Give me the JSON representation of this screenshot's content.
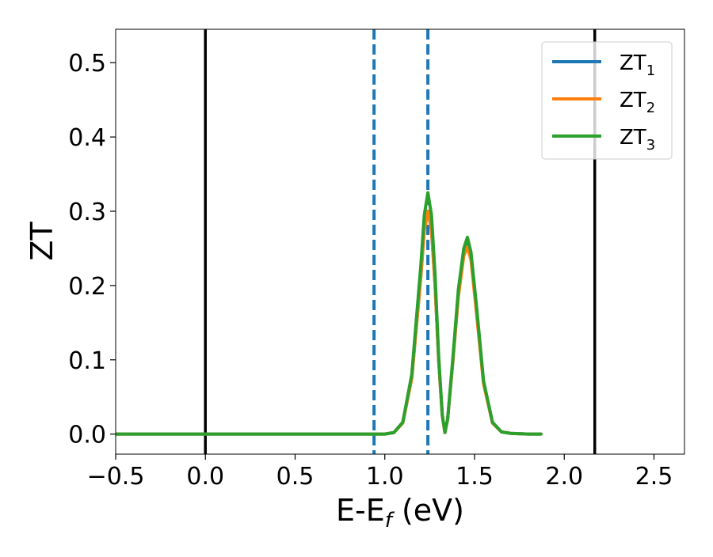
{
  "chart_data": {
    "type": "line",
    "title": "",
    "xlabel_main": "E-E",
    "xlabel_sub": "f",
    "xlabel_tail": " (eV)",
    "ylabel": "ZT",
    "xlim": [
      -0.5,
      2.67
    ],
    "ylim": [
      -0.027,
      0.545
    ],
    "xticks": [
      -0.5,
      0.0,
      0.5,
      1.0,
      1.5,
      2.0,
      2.5
    ],
    "xtick_labels": [
      "−0.5",
      "0.0",
      "0.5",
      "1.0",
      "1.5",
      "2.0",
      "2.5"
    ],
    "yticks": [
      0.0,
      0.1,
      0.2,
      0.3,
      0.4,
      0.5
    ],
    "ytick_labels": [
      "0.0",
      "0.1",
      "0.2",
      "0.3",
      "0.4",
      "0.5"
    ],
    "grid": false,
    "legend_position": "top-right",
    "vlines": [
      {
        "x": 0.0,
        "style": "solid",
        "color": "#000000"
      },
      {
        "x": 2.17,
        "style": "solid",
        "color": "#000000"
      },
      {
        "x": 0.94,
        "style": "dashed",
        "color": "#1f77b4"
      },
      {
        "x": 1.24,
        "style": "dashed",
        "color": "#1f77b4"
      }
    ],
    "series": [
      {
        "name_main": "ZT",
        "name_sub": "1",
        "color": "#1f77b4",
        "x": [
          -0.5,
          0.9,
          1.0,
          1.05,
          1.1,
          1.15,
          1.2,
          1.22,
          1.24,
          1.26,
          1.28,
          1.3,
          1.32,
          1.335,
          1.35,
          1.38,
          1.41,
          1.44,
          1.46,
          1.48,
          1.51,
          1.55,
          1.6,
          1.65,
          1.7,
          1.8,
          1.87
        ],
        "y": [
          0.0,
          0.0,
          0.0,
          0.002,
          0.015,
          0.075,
          0.21,
          0.275,
          0.3,
          0.275,
          0.2,
          0.1,
          0.025,
          0.002,
          0.02,
          0.1,
          0.19,
          0.245,
          0.258,
          0.24,
          0.17,
          0.07,
          0.015,
          0.003,
          0.001,
          0.0,
          0.0
        ]
      },
      {
        "name_main": "ZT",
        "name_sub": "2",
        "color": "#ff7f0e",
        "x": [
          -0.5,
          0.9,
          1.0,
          1.05,
          1.1,
          1.15,
          1.2,
          1.22,
          1.24,
          1.26,
          1.28,
          1.3,
          1.32,
          1.335,
          1.35,
          1.38,
          1.41,
          1.44,
          1.46,
          1.48,
          1.51,
          1.55,
          1.6,
          1.65,
          1.7,
          1.8,
          1.87
        ],
        "y": [
          0.0,
          0.0,
          0.0,
          0.002,
          0.015,
          0.075,
          0.21,
          0.275,
          0.3,
          0.275,
          0.2,
          0.1,
          0.025,
          0.002,
          0.02,
          0.1,
          0.185,
          0.24,
          0.252,
          0.235,
          0.165,
          0.068,
          0.015,
          0.003,
          0.001,
          0.0,
          0.0
        ]
      },
      {
        "name_main": "ZT",
        "name_sub": "3",
        "color": "#2ca02c",
        "x": [
          -0.5,
          0.9,
          1.0,
          1.05,
          1.1,
          1.15,
          1.2,
          1.22,
          1.24,
          1.26,
          1.28,
          1.3,
          1.32,
          1.335,
          1.35,
          1.38,
          1.41,
          1.44,
          1.46,
          1.48,
          1.51,
          1.55,
          1.6,
          1.65,
          1.7,
          1.8,
          1.87
        ],
        "y": [
          0.0,
          0.0,
          0.0,
          0.002,
          0.016,
          0.08,
          0.225,
          0.295,
          0.325,
          0.295,
          0.215,
          0.105,
          0.027,
          0.002,
          0.02,
          0.105,
          0.195,
          0.25,
          0.265,
          0.245,
          0.175,
          0.072,
          0.016,
          0.003,
          0.001,
          0.0,
          0.0
        ]
      }
    ]
  }
}
